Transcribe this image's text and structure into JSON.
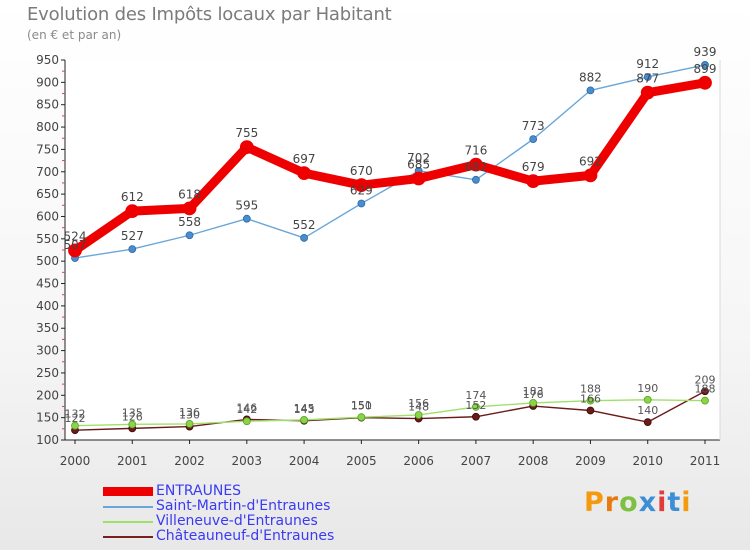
{
  "header": {
    "title": "Evolution des Impôts locaux par Habitant",
    "subtitle": "(en € et par an)"
  },
  "brand": {
    "letters": [
      "P",
      "r",
      "o",
      "x",
      "i",
      "t",
      "i"
    ],
    "colors": [
      "#f59a0f",
      "#e87a12",
      "#7ec142",
      "#3c8ed6",
      "#e23b3b",
      "#3c8ed6",
      "#f59a0f"
    ]
  },
  "chart_data": {
    "type": "line",
    "title": "Evolution des Impôts locaux par Habitant",
    "subtitle": "(en € et par an)",
    "categories": [
      "2000",
      "2001",
      "2002",
      "2003",
      "2004",
      "2005",
      "2006",
      "2007",
      "2008",
      "2009",
      "2010",
      "2011"
    ],
    "ylim": [
      100,
      950
    ],
    "yticks": [
      100,
      150,
      200,
      250,
      300,
      350,
      400,
      450,
      500,
      550,
      600,
      650,
      700,
      750,
      800,
      850,
      900,
      950
    ],
    "grid": false,
    "legend_position": "bottom-left",
    "series": [
      {
        "name": "ENTRAUNES",
        "color": "#ee0000",
        "values": [
          524,
          612,
          618,
          755,
          697,
          670,
          685,
          716,
          679,
          692,
          877,
          899
        ],
        "labels": [
          "524",
          "612",
          "618",
          "755",
          "697",
          "670",
          "685",
          "716",
          "679",
          "692",
          "877",
          "899"
        ]
      },
      {
        "name": "Saint-Martin-d'Entraunes",
        "color": "#6aa6d8",
        "values": [
          507,
          527,
          558,
          595,
          552,
          629,
          702,
          682,
          773,
          882,
          912,
          939
        ],
        "labels": [
          "507",
          "527",
          "558",
          "595",
          "552",
          "629",
          "702",
          "682",
          "773",
          "882",
          "912",
          "939"
        ]
      },
      {
        "name": "Villeneuve-d'Entraunes",
        "color": "#9fe06a",
        "values": [
          132,
          135,
          136,
          142,
          145,
          151,
          156,
          174,
          183,
          188,
          190,
          188
        ],
        "labels": [
          "132",
          "135",
          "136",
          "142",
          "145",
          "151",
          "156",
          "174",
          "183",
          "188",
          "190",
          "188"
        ]
      },
      {
        "name": "Châteauneuf-d'Entraunes",
        "color": "#7a1f1f",
        "values": [
          122,
          126,
          130,
          146,
          143,
          150,
          148,
          152,
          176,
          166,
          140,
          209
        ],
        "labels": [
          "122",
          "126",
          "130",
          "146",
          "143",
          "150",
          "148",
          "152",
          "176",
          "166",
          "140",
          "209"
        ]
      }
    ]
  }
}
